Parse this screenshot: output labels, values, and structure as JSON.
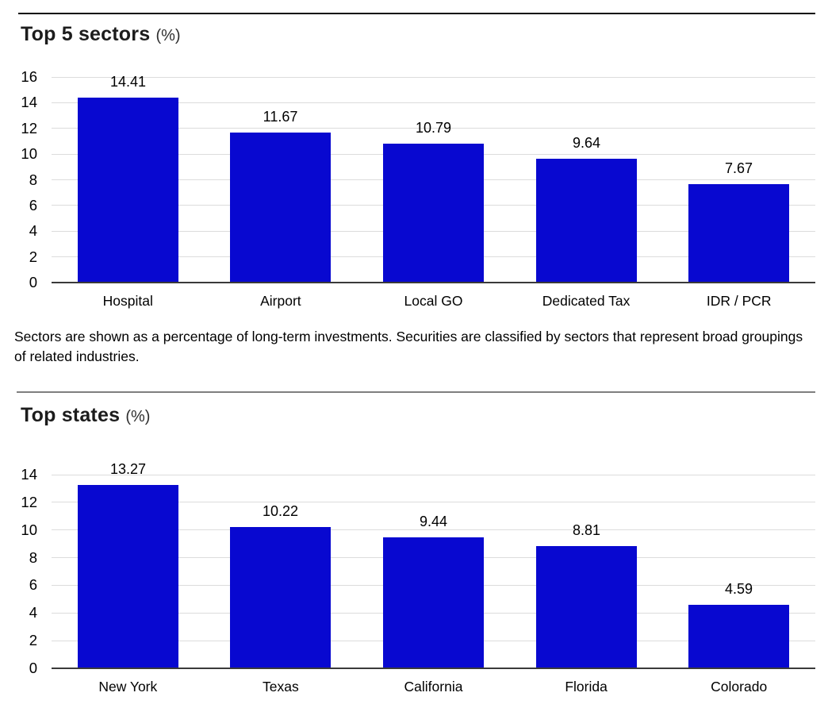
{
  "footnote": "Sectors are shown as a percentage of long-term investments. Securities are classified by sectors that represent broad groupings of related industries.",
  "colors": {
    "bar": "#0808d0",
    "gridline": "#dcdcdc",
    "axis_line": "#3a3a3a"
  },
  "chart_data": [
    {
      "type": "bar",
      "title": "Top 5 sectors",
      "unit_label": "(%)",
      "categories": [
        "Hospital",
        "Airport",
        "Local GO",
        "Dedicated Tax",
        "IDR / PCR"
      ],
      "values": [
        14.41,
        11.67,
        10.79,
        9.64,
        7.67
      ],
      "ylim": [
        0,
        16
      ],
      "ytick_step": 2,
      "bar_color": "#0808d0",
      "grid": true,
      "legend": "none",
      "value_labels": true,
      "xlabel": "",
      "ylabel": ""
    },
    {
      "type": "bar",
      "title": "Top states",
      "unit_label": "(%)",
      "categories": [
        "New York",
        "Texas",
        "California",
        "Florida",
        "Colorado"
      ],
      "values": [
        13.27,
        10.22,
        9.44,
        8.81,
        4.59
      ],
      "ylim": [
        0,
        14
      ],
      "ytick_step": 2,
      "bar_color": "#0808d0",
      "grid": true,
      "legend": "none",
      "value_labels": true,
      "xlabel": "",
      "ylabel": ""
    }
  ]
}
